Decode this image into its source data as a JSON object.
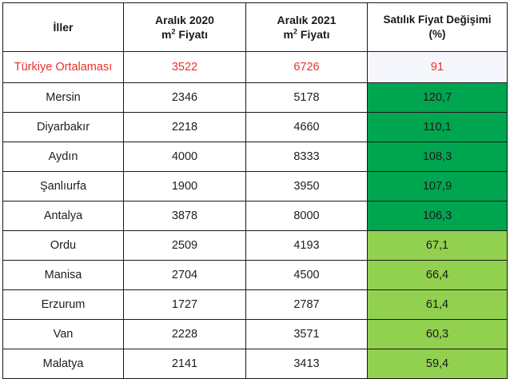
{
  "table": {
    "headers": [
      {
        "line1": "İller",
        "line2": ""
      },
      {
        "line1": "Aralık 2020",
        "line2_prefix": "m",
        "line2_sup": "2",
        "line2_suffix": " Fiyatı"
      },
      {
        "line1": "Aralık 2021",
        "line2_prefix": "m",
        "line2_sup": "2",
        "line2_suffix": " Fiyatı"
      },
      {
        "line1": "Satılık Fiyat Değişimi",
        "line2": "(%)"
      }
    ],
    "average_row": {
      "city": "Türkiye Ortalaması",
      "price_2020": "3522",
      "price_2021": "6726",
      "change": "91"
    },
    "rows": [
      {
        "city": "Mersin",
        "price_2020": "2346",
        "price_2021": "5178",
        "change": "120,7",
        "tier": "dark"
      },
      {
        "city": "Diyarbakır",
        "price_2020": "2218",
        "price_2021": "4660",
        "change": "110,1",
        "tier": "dark"
      },
      {
        "city": "Aydın",
        "price_2020": "4000",
        "price_2021": "8333",
        "change": "108,3",
        "tier": "dark"
      },
      {
        "city": "Şanlıurfa",
        "price_2020": "1900",
        "price_2021": "3950",
        "change": "107,9",
        "tier": "dark"
      },
      {
        "city": "Antalya",
        "price_2020": "3878",
        "price_2021": "8000",
        "change": "106,3",
        "tier": "dark"
      },
      {
        "city": "Ordu",
        "price_2020": "2509",
        "price_2021": "4193",
        "change": "67,1",
        "tier": "light"
      },
      {
        "city": "Manisa",
        "price_2020": "2704",
        "price_2021": "4500",
        "change": "66,4",
        "tier": "light"
      },
      {
        "city": "Erzurum",
        "price_2020": "1727",
        "price_2021": "2787",
        "change": "61,4",
        "tier": "light"
      },
      {
        "city": "Van",
        "price_2020": "2228",
        "price_2021": "3571",
        "change": "60,3",
        "tier": "light"
      },
      {
        "city": "Malatya",
        "price_2020": "2141",
        "price_2021": "3413",
        "change": "59,4",
        "tier": "light"
      }
    ]
  },
  "colors": {
    "average_text": "#e8322b",
    "dark_green": "#00a54f",
    "light_green": "#92d050",
    "border": "#1a1a1a"
  }
}
